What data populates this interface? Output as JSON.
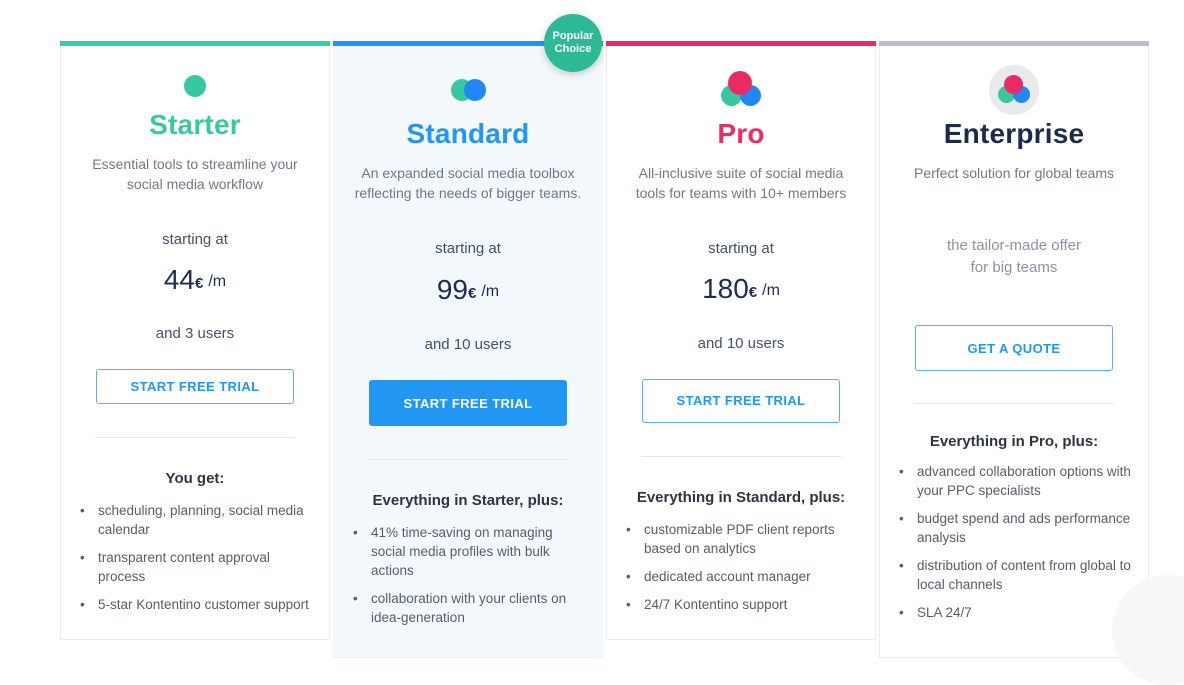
{
  "badge": {
    "label_line1": "Popular",
    "label_line2": "Choice",
    "color": "#2eb996"
  },
  "accent_colors": {
    "starter": "#30d0a8",
    "standard": "#2196f3",
    "pro": "#ea2b63",
    "enterprise": "#b9c0cc"
  },
  "plans": [
    {
      "name": "Starter",
      "description": "Essential tools to streamline your social media workflow",
      "price_prefix": "starting at",
      "price": "44",
      "currency": "€",
      "period": "/m",
      "users_note": "and 3 users",
      "cta_label": "START FREE TRIAL",
      "features_title": "You get:",
      "features": [
        "scheduling, planning, social media calendar",
        "transparent content approval process",
        "5-star Kontentino customer support"
      ]
    },
    {
      "name": "Standard",
      "description": "An expanded social media toolbox reflecting the needs of bigger teams.",
      "price_prefix": "starting at",
      "price": "99",
      "currency": "€",
      "period": "/m",
      "users_note": "and 10 users",
      "cta_label": "START FREE TRIAL",
      "features_title": "Everything in Starter, plus:",
      "features": [
        "41% time-saving on managing social media profiles with bulk actions",
        "collaboration with your clients on idea-generation"
      ]
    },
    {
      "name": "Pro",
      "description": "All-inclusive suite of social media tools for teams with 10+ members",
      "price_prefix": "starting at",
      "price": "180",
      "currency": "€",
      "period": "/m",
      "users_note": "and 10 users",
      "cta_label": "START FREE TRIAL",
      "features_title": "Everything in Standard, plus:",
      "features": [
        "customizable PDF client reports based on analytics",
        "dedicated account manager",
        "24/7 Kontentino support"
      ]
    },
    {
      "name": "Enterprise",
      "description": "Perfect solution for global teams",
      "tailor_note_line1": "the tailor-made offer",
      "tailor_note_line2": "for big teams",
      "cta_label": "GET A QUOTE",
      "features_title": "Everything in Pro, plus:",
      "features": [
        "advanced collaboration options with your PPC specialists",
        "budget spend and ads performance analysis",
        "distribution of content from global to local channels",
        "SLA 24/7"
      ]
    }
  ]
}
